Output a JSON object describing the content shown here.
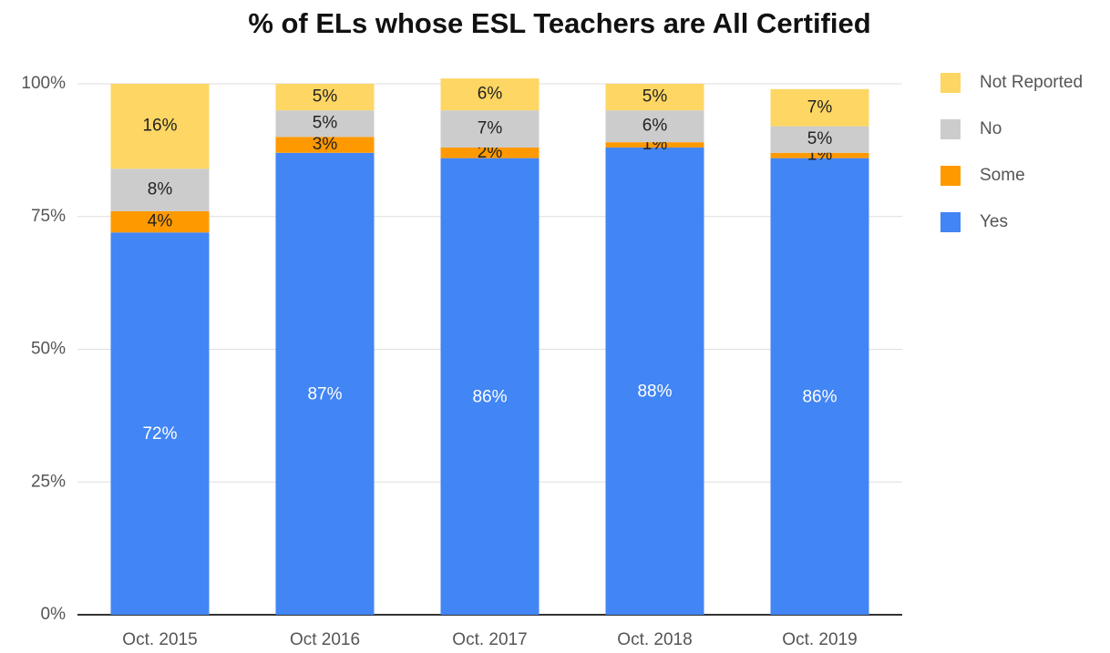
{
  "chart_data": {
    "type": "stacked_bar",
    "title": "% of ELs whose ESL Teachers are All Certified",
    "categories": [
      "Oct. 2015",
      "Oct 2016",
      "Oct. 2017",
      "Oct. 2018",
      "Oct. 2019"
    ],
    "series": [
      {
        "name": "Yes",
        "color": "#4285f4",
        "values": [
          72,
          87,
          86,
          88,
          86
        ],
        "value_labels": [
          "72%",
          "87%",
          "86%",
          "88%",
          "86%"
        ]
      },
      {
        "name": "Some",
        "color": "#ff9900",
        "values": [
          4,
          3,
          2,
          1,
          1
        ],
        "value_labels": [
          "4%",
          "3%",
          "2%",
          "1%",
          "1%"
        ]
      },
      {
        "name": "No",
        "color": "#cccccc",
        "values": [
          8,
          5,
          7,
          6,
          5
        ],
        "value_labels": [
          "8%",
          "5%",
          "7%",
          "6%",
          "5%"
        ]
      },
      {
        "name": "Not Reported",
        "color": "#fdd663",
        "values": [
          16,
          5,
          6,
          5,
          7
        ],
        "value_labels": [
          "16%",
          "5%",
          "6%",
          "5%",
          "7%"
        ]
      }
    ],
    "ylim": [
      0,
      100
    ],
    "yticks": [
      {
        "value": 0,
        "label": "0%"
      },
      {
        "value": 25,
        "label": "25%"
      },
      {
        "value": 50,
        "label": "50%"
      },
      {
        "value": 75,
        "label": "75%"
      },
      {
        "value": 100,
        "label": "100%"
      }
    ],
    "grid": true,
    "legend": "right"
  }
}
